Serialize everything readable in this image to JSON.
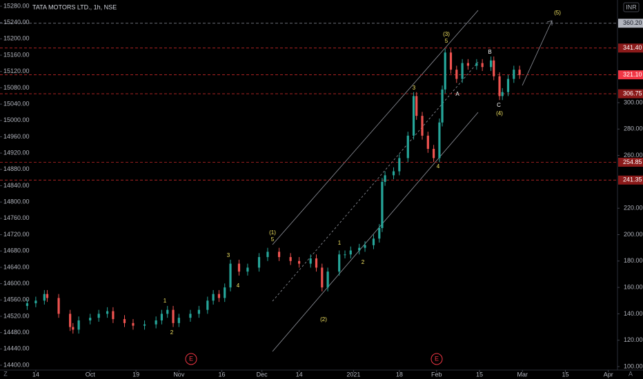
{
  "chart_data": {
    "type": "candlestick",
    "title": "TATA MOTORS LTD., 1h, NSE",
    "currency": "INR",
    "up_color": "#26a69a",
    "down_color": "#ef5350",
    "x": [
      -3,
      0,
      3,
      4,
      8,
      12,
      13,
      15,
      19,
      22,
      25,
      27,
      31,
      34,
      38,
      42,
      44,
      46,
      48,
      50,
      54,
      57,
      60,
      62,
      64,
      66,
      68,
      71,
      74,
      78,
      81,
      85,
      89,
      92,
      96,
      98,
      100,
      102,
      106,
      108,
      110,
      113,
      115,
      118,
      120,
      121,
      122,
      125,
      127,
      130,
      132,
      133,
      135,
      137,
      139,
      141,
      142,
      143,
      145,
      147,
      149,
      151,
      154,
      156,
      159,
      160,
      162,
      163,
      165,
      167,
      169
    ],
    "open": [
      146,
      148,
      150,
      155,
      152,
      140,
      130,
      128,
      135,
      137,
      140,
      142,
      136,
      133,
      131,
      132,
      135,
      140,
      143,
      133,
      137,
      140,
      143,
      150,
      155,
      152,
      160,
      178,
      172,
      175,
      183,
      187,
      183,
      180,
      178,
      182,
      175,
      160,
      172,
      185,
      185,
      188,
      190,
      192,
      197,
      205,
      240,
      245,
      248,
      258,
      275,
      305,
      290,
      275,
      265,
      258,
      285,
      310,
      338,
      325,
      318,
      330,
      328,
      330,
      327,
      332,
      320,
      305,
      308,
      318,
      325
    ],
    "high": [
      151,
      153,
      158,
      158,
      155,
      143,
      133,
      138,
      140,
      143,
      145,
      145,
      139,
      136,
      135,
      138,
      143,
      146,
      146,
      140,
      143,
      146,
      153,
      158,
      158,
      163,
      181,
      181,
      178,
      186,
      190,
      190,
      186,
      183,
      185,
      185,
      178,
      175,
      188,
      188,
      191,
      193,
      195,
      200,
      208,
      243,
      248,
      251,
      261,
      278,
      308,
      308,
      293,
      278,
      268,
      288,
      313,
      341,
      341,
      328,
      333,
      333,
      333,
      333,
      335,
      335,
      323,
      311,
      321,
      328,
      328
    ],
    "low": [
      143,
      145,
      147,
      149,
      137,
      127,
      125,
      125,
      132,
      134,
      137,
      133,
      130,
      128,
      128,
      129,
      132,
      137,
      130,
      130,
      134,
      137,
      140,
      147,
      149,
      149,
      157,
      169,
      169,
      172,
      180,
      180,
      177,
      175,
      175,
      172,
      157,
      157,
      169,
      182,
      182,
      185,
      187,
      189,
      194,
      202,
      237,
      242,
      245,
      255,
      272,
      287,
      272,
      262,
      255,
      255,
      282,
      307,
      322,
      315,
      315,
      325,
      325,
      324,
      324,
      317,
      302,
      302,
      305,
      315,
      318
    ],
    "close": [
      148,
      150,
      155,
      152,
      140,
      130,
      128,
      135,
      137,
      140,
      142,
      136,
      133,
      131,
      132,
      135,
      140,
      143,
      133,
      137,
      140,
      143,
      150,
      155,
      152,
      160,
      178,
      172,
      175,
      183,
      187,
      183,
      180,
      178,
      182,
      175,
      160,
      172,
      185,
      185,
      188,
      190,
      192,
      197,
      205,
      240,
      245,
      248,
      258,
      275,
      305,
      290,
      275,
      265,
      258,
      285,
      310,
      338,
      325,
      318,
      330,
      328,
      330,
      327,
      332,
      320,
      305,
      308,
      318,
      325,
      321
    ],
    "xlim": [
      -12.5,
      203.2
    ],
    "xticks": [
      {
        "value": 0,
        "label": "14"
      },
      {
        "value": 19,
        "label": "Oct"
      },
      {
        "value": 35,
        "label": "19"
      },
      {
        "value": 50,
        "label": "Nov"
      },
      {
        "value": 65,
        "label": "16"
      },
      {
        "value": 79,
        "label": "Dec"
      },
      {
        "value": 92,
        "label": "14"
      },
      {
        "value": 111,
        "label": "2021"
      },
      {
        "value": 127,
        "label": "18"
      },
      {
        "value": 140,
        "label": "Feb"
      },
      {
        "value": 155,
        "label": "15"
      },
      {
        "value": 170,
        "label": "Mar"
      },
      {
        "value": 185,
        "label": "15"
      },
      {
        "value": 200,
        "label": "Apr"
      }
    ],
    "ylim": [
      97.4,
      377.8
    ],
    "yticks": [
      {
        "value": 100,
        "label": "100.00"
      },
      {
        "value": 120,
        "label": "120.00"
      },
      {
        "value": 140,
        "label": "140.00"
      },
      {
        "value": 160,
        "label": "160.00"
      },
      {
        "value": 180,
        "label": "180.00"
      },
      {
        "value": 200,
        "label": "200.00"
      },
      {
        "value": 220,
        "label": "220.00"
      },
      {
        "value": 260,
        "label": "260.00"
      },
      {
        "value": 280,
        "label": "280.00"
      },
      {
        "value": 300,
        "label": "300.00"
      }
    ],
    "y2lim": [
      14388.2,
      15295.2
    ],
    "y2ticks": [
      {
        "value": 14400,
        "label": "14400.00"
      },
      {
        "value": 14440,
        "label": "14440.00"
      },
      {
        "value": 14480,
        "label": "14480.00"
      },
      {
        "value": 14520,
        "label": "14520.00"
      },
      {
        "value": 14560,
        "label": "14560.00"
      },
      {
        "value": 14600,
        "label": "14600.00"
      },
      {
        "value": 14640,
        "label": "14640.00"
      },
      {
        "value": 14680,
        "label": "14680.00"
      },
      {
        "value": 14720,
        "label": "14720.00"
      },
      {
        "value": 14760,
        "label": "14760.00"
      },
      {
        "value": 14800,
        "label": "14800.00"
      },
      {
        "value": 14840,
        "label": "14840.00"
      },
      {
        "value": 14880,
        "label": "14880.00"
      },
      {
        "value": 14920,
        "label": "14920.00"
      },
      {
        "value": 14960,
        "label": "14960.00"
      },
      {
        "value": 15000,
        "label": "15000.00"
      },
      {
        "value": 15040,
        "label": "15040.00"
      },
      {
        "value": 15080,
        "label": "15080.00"
      },
      {
        "value": 15120,
        "label": "15120.00"
      },
      {
        "value": 15160,
        "label": "15160.00"
      },
      {
        "value": 15200,
        "label": "15200.00"
      },
      {
        "value": 15240,
        "label": "15240.00"
      },
      {
        "value": 15280,
        "label": "15280.00"
      }
    ],
    "levels": [
      {
        "value": 360.2,
        "label": "360.20",
        "color": "#b2b5be",
        "text_color": "#131722"
      },
      {
        "value": 341.4,
        "label": "341.40",
        "color": "#8b1a1a",
        "text_color": "#ffffff"
      },
      {
        "value": 321.1,
        "label": "321.10",
        "color": "#f23645",
        "text_color": "#ffffff"
      },
      {
        "value": 306.75,
        "label": "306.75",
        "color": "#8b1a1a",
        "text_color": "#ffffff"
      },
      {
        "value": 254.85,
        "label": "254.85",
        "color": "#8b1a1a",
        "text_color": "#ffffff"
      },
      {
        "value": 241.35,
        "label": "241.35",
        "color": "#8b1a1a",
        "text_color": "#ffffff"
      }
    ],
    "annotations": [
      {
        "text": "1",
        "color": "#f5e663"
      },
      {
        "text": "2",
        "color": "#f5e663"
      },
      {
        "text": "3",
        "color": "#f5e663"
      },
      {
        "text": "4",
        "color": "#f5e663"
      },
      {
        "text": "(1)",
        "color": "#f5e663"
      },
      {
        "text": "5",
        "color": "#f5e663"
      },
      {
        "text": "(2)",
        "color": "#f5e663"
      },
      {
        "text": "1",
        "color": "#f5e663"
      },
      {
        "text": "2",
        "color": "#f5e663"
      },
      {
        "text": "3",
        "color": "#f5e663"
      },
      {
        "text": "4",
        "color": "#f5e663"
      },
      {
        "text": "(3)",
        "color": "#f5e663"
      },
      {
        "text": "5",
        "color": "#f5e663"
      },
      {
        "text": "A",
        "color": "#ffffff"
      },
      {
        "text": "B",
        "color": "#ffffff"
      },
      {
        "text": "C",
        "color": "#ffffff"
      },
      {
        "text": "(4)",
        "color": "#f5e663"
      },
      {
        "text": "(5)",
        "color": "#f5e663"
      }
    ],
    "events": [
      "E",
      "E"
    ],
    "corner_left": "Z",
    "corner_right": "A"
  }
}
